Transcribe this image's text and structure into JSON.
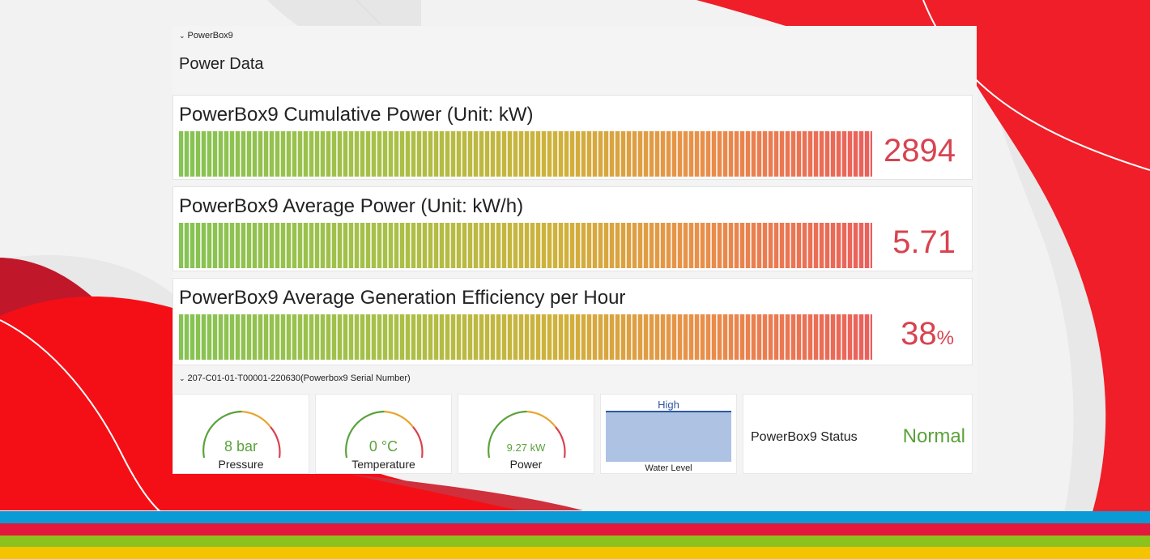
{
  "dashboard": {
    "row1_header": "PowerBox9",
    "section_title": "Power Data",
    "panels": [
      {
        "title": "PowerBox9 Cumulative Power (Unit: kW)",
        "value": "2894",
        "unit": ""
      },
      {
        "title": "PowerBox9 Average Power (Unit: kW/h)",
        "value": "5.71",
        "unit": ""
      },
      {
        "title": "PowerBox9 Average Generation Efficiency per Hour",
        "value": "38",
        "unit": "%"
      }
    ],
    "row2_header": "207-C01-01-T00001-220630(Powerbox9 Serial Number)",
    "gauges": [
      {
        "label": "Pressure",
        "value": "8 bar"
      },
      {
        "label": "Temperature",
        "value": "0 °C"
      },
      {
        "label": "Power",
        "value": "9.27 kW"
      }
    ],
    "water": {
      "label": "Water Level",
      "level": "High"
    },
    "status": {
      "label": "PowerBox9 Status",
      "value": "Normal"
    }
  },
  "colors": {
    "value_red": "#d8434f",
    "ok_green": "#5aa23b",
    "brand_red": "#f01e28",
    "stripe_blue": "#0a9ad6",
    "stripe_red": "#e4173d",
    "stripe_green": "#8cc21e",
    "stripe_yellow": "#f5c400"
  }
}
